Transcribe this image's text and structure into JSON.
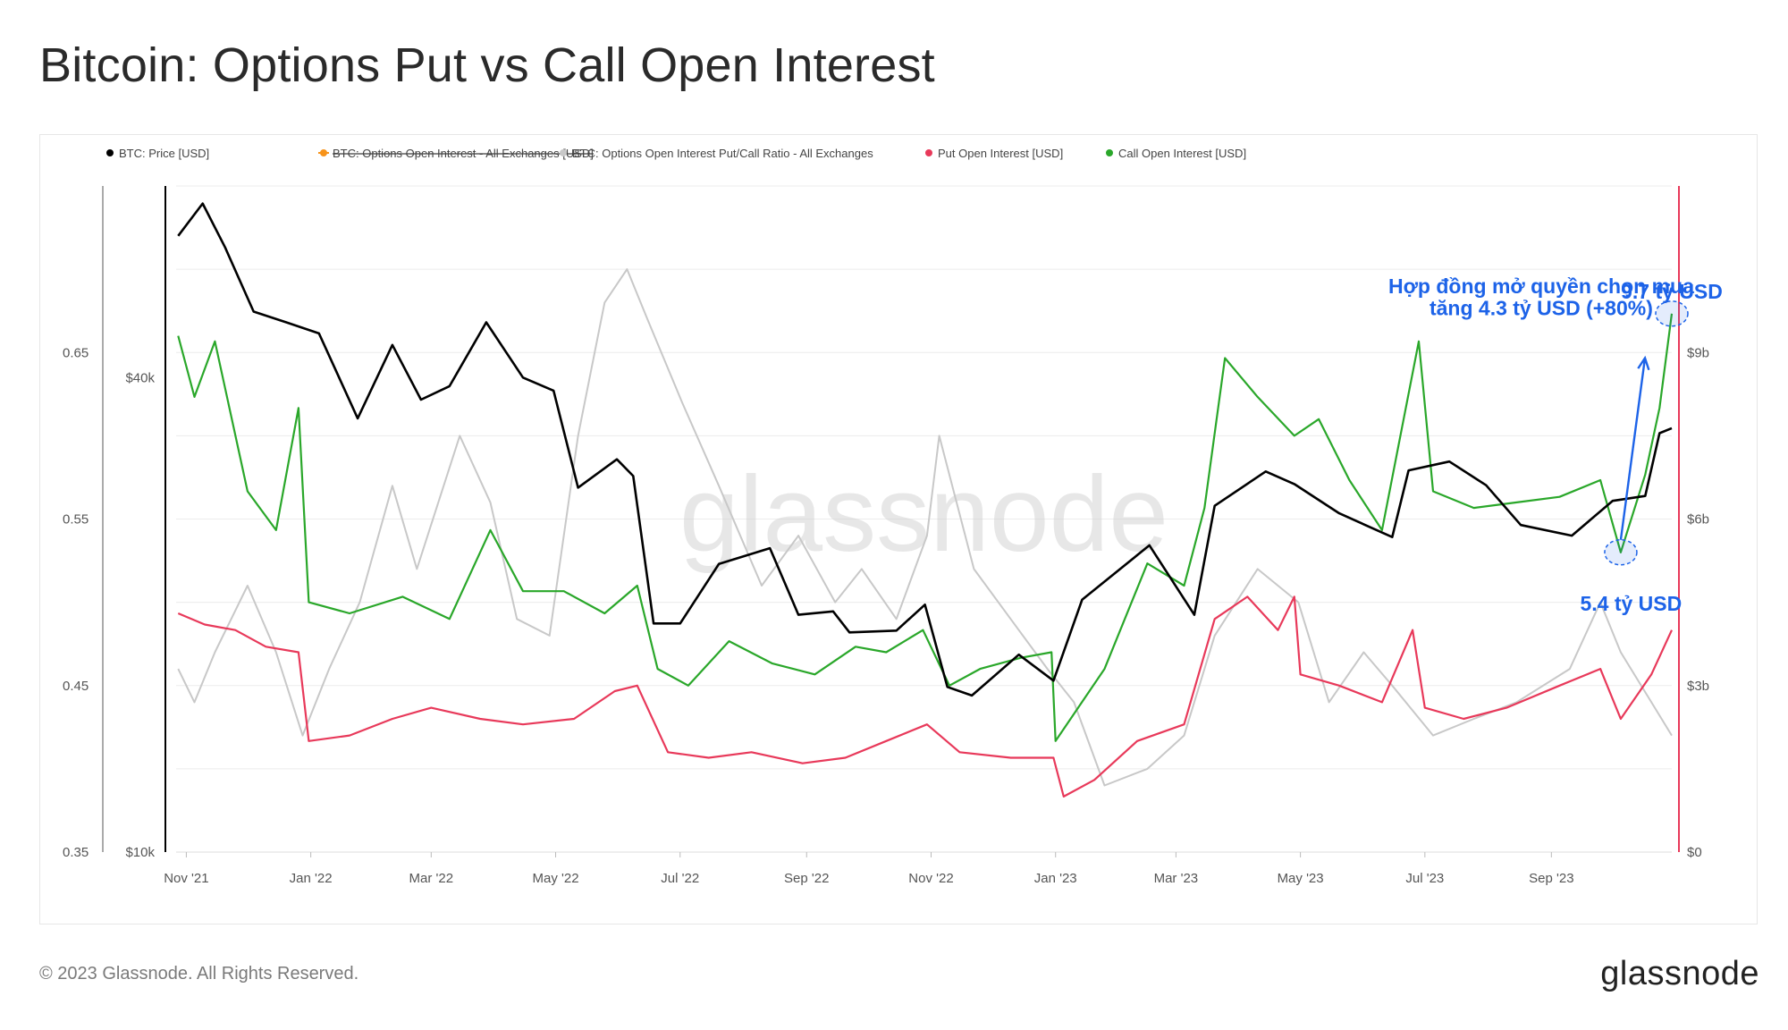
{
  "title": "Bitcoin: Options Put vs Call Open Interest",
  "footer": {
    "copyright": "© 2023 Glassnode. All Rights Reserved.",
    "logo": "glassnode"
  },
  "watermark": "glassnode",
  "colors": {
    "price": "#000000",
    "oi_total": "#f7931a",
    "ratio": "#c8c8c8",
    "put": "#e8395a",
    "call": "#2aa72a",
    "annotation": "#1d63e8",
    "right_axis_line": "#e8395a"
  },
  "legend": [
    {
      "label": "BTC: Price [USD]",
      "color": "#000000",
      "disabled": false
    },
    {
      "label": "BTC: Options Open Interest - All Exchanges [USD]",
      "color": "#f7931a",
      "disabled": true
    },
    {
      "label": "BTC: Options Open Interest Put/Call Ratio - All Exchanges",
      "color": "#c8c8c8",
      "disabled": false
    },
    {
      "label": "Put Open Interest [USD]",
      "color": "#e8395a",
      "disabled": false
    },
    {
      "label": "Call Open Interest [USD]",
      "color": "#2aa72a",
      "disabled": false
    }
  ],
  "chart_data": {
    "type": "line",
    "legend_position": "top-left",
    "grid": true,
    "x_range": [
      "2021-10-27",
      "2023-10-30"
    ],
    "x_ticks": [
      {
        "date": "2021-11-01",
        "label": "Nov '21"
      },
      {
        "date": "2022-01-01",
        "label": "Jan '22"
      },
      {
        "date": "2022-03-01",
        "label": "Mar '22"
      },
      {
        "date": "2022-05-01",
        "label": "May '22"
      },
      {
        "date": "2022-07-01",
        "label": "Jul '22"
      },
      {
        "date": "2022-09-01",
        "label": "Sep '22"
      },
      {
        "date": "2022-11-01",
        "label": "Nov '22"
      },
      {
        "date": "2023-01-01",
        "label": "Jan '23"
      },
      {
        "date": "2023-03-01",
        "label": "Mar '23"
      },
      {
        "date": "2023-05-01",
        "label": "May '23"
      },
      {
        "date": "2023-07-01",
        "label": "Jul '23"
      },
      {
        "date": "2023-09-01",
        "label": "Sep '23"
      }
    ],
    "ratio_axis": {
      "ticks": [
        0.35,
        0.45,
        0.55,
        0.65
      ],
      "tick_labels": [
        "0.35",
        "0.45",
        "0.55",
        "0.65"
      ],
      "range": [
        0.35,
        0.75
      ]
    },
    "price_axis": {
      "scale": "log",
      "ticks": [
        10000,
        40000
      ],
      "tick_labels": [
        "$10k",
        "$40k"
      ],
      "range": [
        10000,
        70000
      ]
    },
    "oi_axis": {
      "ticks": [
        0,
        3,
        6,
        9
      ],
      "tick_labels": [
        "$0",
        "$3b",
        "$6b",
        "$9b"
      ],
      "unit": "USD billions",
      "range": [
        0,
        12
      ]
    },
    "series": [
      {
        "name": "BTC: Price [USD]",
        "axis": "price",
        "points": [
          [
            "2021-10-28",
            60500
          ],
          [
            "2021-11-09",
            66500
          ],
          [
            "2021-11-20",
            58500
          ],
          [
            "2021-12-04",
            48500
          ],
          [
            "2021-12-20",
            47000
          ],
          [
            "2022-01-05",
            45500
          ],
          [
            "2022-01-24",
            35500
          ],
          [
            "2022-02-10",
            44000
          ],
          [
            "2022-02-24",
            37500
          ],
          [
            "2022-03-10",
            39000
          ],
          [
            "2022-03-28",
            47000
          ],
          [
            "2022-04-15",
            40000
          ],
          [
            "2022-04-30",
            38500
          ],
          [
            "2022-05-12",
            29000
          ],
          [
            "2022-05-31",
            31500
          ],
          [
            "2022-06-08",
            30000
          ],
          [
            "2022-06-18",
            19500
          ],
          [
            "2022-07-01",
            19500
          ],
          [
            "2022-07-20",
            23200
          ],
          [
            "2022-08-14",
            24300
          ],
          [
            "2022-08-28",
            20000
          ],
          [
            "2022-09-14",
            20200
          ],
          [
            "2022-09-22",
            19000
          ],
          [
            "2022-10-15",
            19100
          ],
          [
            "2022-10-29",
            20600
          ],
          [
            "2022-11-09",
            16200
          ],
          [
            "2022-11-21",
            15800
          ],
          [
            "2022-12-14",
            17800
          ],
          [
            "2022-12-31",
            16500
          ],
          [
            "2023-01-14",
            20900
          ],
          [
            "2023-02-16",
            24500
          ],
          [
            "2023-03-10",
            20000
          ],
          [
            "2023-03-20",
            27500
          ],
          [
            "2023-04-14",
            30400
          ],
          [
            "2023-04-28",
            29300
          ],
          [
            "2023-05-20",
            26900
          ],
          [
            "2023-06-15",
            25100
          ],
          [
            "2023-06-23",
            30500
          ],
          [
            "2023-07-13",
            31300
          ],
          [
            "2023-07-31",
            29200
          ],
          [
            "2023-08-17",
            26000
          ],
          [
            "2023-09-11",
            25200
          ],
          [
            "2023-10-01",
            27900
          ],
          [
            "2023-10-17",
            28300
          ],
          [
            "2023-10-24",
            34000
          ],
          [
            "2023-10-30",
            34500
          ]
        ]
      },
      {
        "name": "BTC: Options Open Interest Put/Call Ratio - All Exchanges",
        "axis": "ratio",
        "points": [
          [
            "2021-10-28",
            0.46
          ],
          [
            "2021-11-05",
            0.44
          ],
          [
            "2021-11-15",
            0.47
          ],
          [
            "2021-12-01",
            0.51
          ],
          [
            "2021-12-15",
            0.47
          ],
          [
            "2021-12-28",
            0.42
          ],
          [
            "2022-01-10",
            0.46
          ],
          [
            "2022-01-25",
            0.5
          ],
          [
            "2022-02-10",
            0.57
          ],
          [
            "2022-02-22",
            0.52
          ],
          [
            "2022-03-15",
            0.6
          ],
          [
            "2022-03-30",
            0.56
          ],
          [
            "2022-04-12",
            0.49
          ],
          [
            "2022-04-28",
            0.48
          ],
          [
            "2022-05-12",
            0.6
          ],
          [
            "2022-05-25",
            0.68
          ],
          [
            "2022-06-05",
            0.7
          ],
          [
            "2022-06-15",
            0.67
          ],
          [
            "2022-07-02",
            0.62
          ],
          [
            "2022-07-20",
            0.57
          ],
          [
            "2022-08-10",
            0.51
          ],
          [
            "2022-08-28",
            0.54
          ],
          [
            "2022-09-15",
            0.5
          ],
          [
            "2022-09-28",
            0.52
          ],
          [
            "2022-10-15",
            0.49
          ],
          [
            "2022-10-30",
            0.54
          ],
          [
            "2022-11-05",
            0.6
          ],
          [
            "2022-11-22",
            0.52
          ],
          [
            "2022-12-10",
            0.49
          ],
          [
            "2022-12-28",
            0.46
          ],
          [
            "2023-01-10",
            0.44
          ],
          [
            "2023-01-25",
            0.39
          ],
          [
            "2023-02-15",
            0.4
          ],
          [
            "2023-03-05",
            0.42
          ],
          [
            "2023-03-20",
            0.48
          ],
          [
            "2023-04-10",
            0.52
          ],
          [
            "2023-04-30",
            0.5
          ],
          [
            "2023-05-15",
            0.44
          ],
          [
            "2023-06-01",
            0.47
          ],
          [
            "2023-06-15",
            0.45
          ],
          [
            "2023-07-05",
            0.42
          ],
          [
            "2023-07-25",
            0.43
          ],
          [
            "2023-08-15",
            0.44
          ],
          [
            "2023-09-10",
            0.46
          ],
          [
            "2023-09-25",
            0.5
          ],
          [
            "2023-10-05",
            0.47
          ],
          [
            "2023-10-20",
            0.44
          ],
          [
            "2023-10-30",
            0.42
          ]
        ]
      },
      {
        "name": "Put Open Interest [USD]",
        "axis": "oi",
        "points": [
          [
            "2021-10-28",
            4.3
          ],
          [
            "2021-11-10",
            4.1
          ],
          [
            "2021-11-25",
            4.0
          ],
          [
            "2021-12-10",
            3.7
          ],
          [
            "2021-12-26",
            3.6
          ],
          [
            "2021-12-31",
            2.0
          ],
          [
            "2022-01-20",
            2.1
          ],
          [
            "2022-02-10",
            2.4
          ],
          [
            "2022-03-01",
            2.6
          ],
          [
            "2022-03-25",
            2.4
          ],
          [
            "2022-04-15",
            2.3
          ],
          [
            "2022-05-10",
            2.4
          ],
          [
            "2022-05-30",
            2.9
          ],
          [
            "2022-06-10",
            3.0
          ],
          [
            "2022-06-25",
            1.8
          ],
          [
            "2022-07-15",
            1.7
          ],
          [
            "2022-08-05",
            1.8
          ],
          [
            "2022-08-30",
            1.6
          ],
          [
            "2022-09-20",
            1.7
          ],
          [
            "2022-10-10",
            2.0
          ],
          [
            "2022-10-30",
            2.3
          ],
          [
            "2022-11-15",
            1.8
          ],
          [
            "2022-12-10",
            1.7
          ],
          [
            "2022-12-31",
            1.7
          ],
          [
            "2023-01-05",
            1.0
          ],
          [
            "2023-01-20",
            1.3
          ],
          [
            "2023-02-10",
            2.0
          ],
          [
            "2023-03-05",
            2.3
          ],
          [
            "2023-03-20",
            4.2
          ],
          [
            "2023-04-05",
            4.6
          ],
          [
            "2023-04-20",
            4.0
          ],
          [
            "2023-04-28",
            4.6
          ],
          [
            "2023-05-01",
            3.2
          ],
          [
            "2023-05-20",
            3.0
          ],
          [
            "2023-06-10",
            2.7
          ],
          [
            "2023-06-25",
            4.0
          ],
          [
            "2023-07-01",
            2.6
          ],
          [
            "2023-07-20",
            2.4
          ],
          [
            "2023-08-10",
            2.6
          ],
          [
            "2023-09-05",
            3.0
          ],
          [
            "2023-09-25",
            3.3
          ],
          [
            "2023-10-05",
            2.4
          ],
          [
            "2023-10-20",
            3.2
          ],
          [
            "2023-10-30",
            4.0
          ]
        ]
      },
      {
        "name": "Call Open Interest [USD]",
        "axis": "oi",
        "points": [
          [
            "2021-10-28",
            9.3
          ],
          [
            "2021-11-05",
            8.2
          ],
          [
            "2021-11-15",
            9.2
          ],
          [
            "2021-12-01",
            6.5
          ],
          [
            "2021-12-15",
            5.8
          ],
          [
            "2021-12-26",
            8.0
          ],
          [
            "2021-12-31",
            4.5
          ],
          [
            "2022-01-20",
            4.3
          ],
          [
            "2022-02-15",
            4.6
          ],
          [
            "2022-03-10",
            4.2
          ],
          [
            "2022-03-30",
            5.8
          ],
          [
            "2022-04-15",
            4.7
          ],
          [
            "2022-05-05",
            4.7
          ],
          [
            "2022-05-25",
            4.3
          ],
          [
            "2022-06-10",
            4.8
          ],
          [
            "2022-06-20",
            3.3
          ],
          [
            "2022-07-05",
            3.0
          ],
          [
            "2022-07-25",
            3.8
          ],
          [
            "2022-08-15",
            3.4
          ],
          [
            "2022-09-05",
            3.2
          ],
          [
            "2022-09-25",
            3.7
          ],
          [
            "2022-10-10",
            3.6
          ],
          [
            "2022-10-28",
            4.0
          ],
          [
            "2022-11-10",
            3.0
          ],
          [
            "2022-11-25",
            3.3
          ],
          [
            "2022-12-15",
            3.5
          ],
          [
            "2022-12-30",
            3.6
          ],
          [
            "2023-01-01",
            2.0
          ],
          [
            "2023-01-25",
            3.3
          ],
          [
            "2023-02-15",
            5.2
          ],
          [
            "2023-03-05",
            4.8
          ],
          [
            "2023-03-15",
            6.2
          ],
          [
            "2023-03-25",
            8.9
          ],
          [
            "2023-04-10",
            8.2
          ],
          [
            "2023-04-28",
            7.5
          ],
          [
            "2023-05-10",
            7.8
          ],
          [
            "2023-05-25",
            6.7
          ],
          [
            "2023-06-10",
            5.8
          ],
          [
            "2023-06-28",
            9.2
          ],
          [
            "2023-07-05",
            6.5
          ],
          [
            "2023-07-25",
            6.2
          ],
          [
            "2023-08-15",
            6.3
          ],
          [
            "2023-09-05",
            6.4
          ],
          [
            "2023-09-25",
            6.7
          ],
          [
            "2023-10-05",
            5.4
          ],
          [
            "2023-10-17",
            6.8
          ],
          [
            "2023-10-24",
            8.0
          ],
          [
            "2023-10-30",
            9.7
          ]
        ]
      }
    ],
    "annotations": [
      {
        "text": "Hợp đồng mở quyền chọn mua",
        "date": "2023-08-27",
        "value_b": 10.2
      },
      {
        "text": "tăng 4.3 tỷ USD (+80%)",
        "date": "2023-08-27",
        "value_b": 9.8
      },
      {
        "text": "9.7 tỷ USD",
        "date": "2023-10-30",
        "value_b": 10.1
      },
      {
        "text": "5.4 tỷ USD",
        "date": "2023-10-10",
        "value_b": 4.7
      }
    ],
    "highlights": [
      {
        "label": "start",
        "date": "2023-10-05",
        "value_b": 5.4
      },
      {
        "label": "end",
        "date": "2023-10-30",
        "value_b": 9.7
      }
    ]
  }
}
